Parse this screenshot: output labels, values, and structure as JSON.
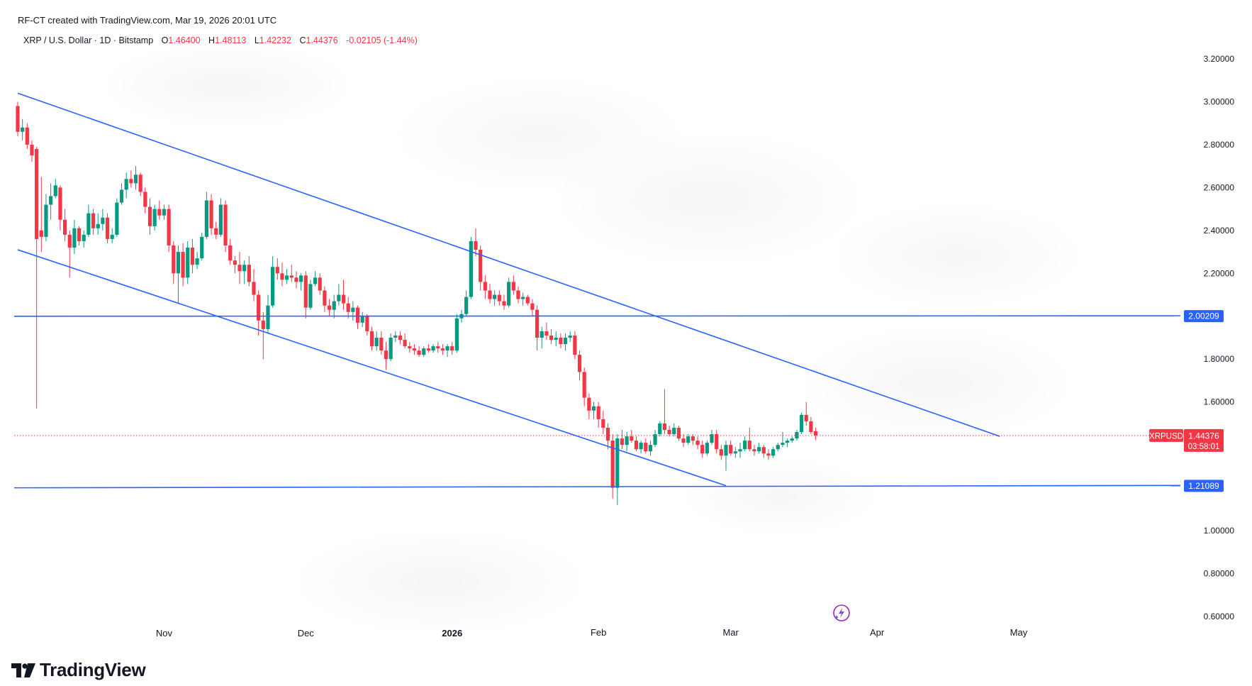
{
  "header": {
    "attribution": "RF-CT created with TradingView.com, Mar 19, 2026 20:01 UTC",
    "symbol_desc": "XRP / U.S. Dollar · 1D · Bitstamp",
    "ohlc": {
      "open_label": "O",
      "open": "1.46400",
      "high_label": "H",
      "high": "1.48113",
      "low_label": "L",
      "low": "1.42232",
      "close_label": "C",
      "close": "1.44376",
      "change": "-0.02105 (-1.44%)"
    }
  },
  "brand": {
    "name": "TradingView",
    "logo_icon": "tradingview-logo-icon"
  },
  "colors": {
    "up": "#089981",
    "down": "#f23645",
    "trendline": "#2962ff",
    "axis_text": "#131722",
    "price_tag_bg": "#f23645",
    "level_tag_bg": "#2962ff"
  },
  "chart_data": {
    "type": "candlestick",
    "title": "XRP / U.S. Dollar · 1D · Bitstamp",
    "x_tick_labels": [
      "Nov",
      "Dec",
      "2026",
      "Feb",
      "Mar",
      "Apr",
      "May"
    ],
    "y_tick_labels": [
      "3.20000",
      "3.00000",
      "2.80000",
      "2.60000",
      "2.40000",
      "2.20000",
      "1.80000",
      "1.60000",
      "1.00000",
      "0.80000",
      "0.60000"
    ],
    "ylim": [
      0.6,
      3.2
    ],
    "scale": "linear",
    "grid": false,
    "last_price": {
      "symbol": "XRPUSD",
      "value": "1.44376",
      "countdown": "03:58:01",
      "price": 1.44376
    },
    "horizontal_levels": [
      {
        "label": "2.00209",
        "value": 2.00209
      },
      {
        "label": "1.21089",
        "value": 1.21089
      }
    ],
    "trendlines": [
      {
        "name": "channel-upper",
        "points": [
          [
            "2025-10-01",
            3.04
          ],
          [
            "2026-04-27",
            1.44
          ]
        ]
      },
      {
        "name": "channel-lower",
        "points": [
          [
            "2025-10-01",
            2.31
          ],
          [
            "2026-02-28",
            1.21
          ]
        ]
      }
    ],
    "ohlc": [
      [
        "2025-10-01",
        2.98,
        3.0,
        2.84,
        2.86
      ],
      [
        "2025-10-02",
        2.86,
        2.92,
        2.82,
        2.88
      ],
      [
        "2025-10-03",
        2.88,
        2.9,
        2.78,
        2.8
      ],
      [
        "2025-10-04",
        2.8,
        2.82,
        2.72,
        2.75
      ],
      [
        "2025-10-05",
        2.78,
        2.79,
        1.57,
        2.36
      ],
      [
        "2025-10-06",
        2.4,
        2.65,
        2.3,
        2.37
      ],
      [
        "2025-10-07",
        2.37,
        2.57,
        2.35,
        2.52
      ],
      [
        "2025-10-08",
        2.52,
        2.62,
        2.45,
        2.56
      ],
      [
        "2025-10-09",
        2.56,
        2.64,
        2.55,
        2.61
      ],
      [
        "2025-10-10",
        2.6,
        2.61,
        2.4,
        2.45
      ],
      [
        "2025-10-11",
        2.45,
        2.5,
        2.35,
        2.38
      ],
      [
        "2025-10-12",
        2.38,
        2.4,
        2.18,
        2.32
      ],
      [
        "2025-10-13",
        2.32,
        2.45,
        2.29,
        2.41
      ],
      [
        "2025-10-14",
        2.41,
        2.42,
        2.33,
        2.35
      ],
      [
        "2025-10-15",
        2.35,
        2.4,
        2.32,
        2.38
      ],
      [
        "2025-10-16",
        2.38,
        2.52,
        2.37,
        2.48
      ],
      [
        "2025-10-17",
        2.48,
        2.5,
        2.38,
        2.41
      ],
      [
        "2025-10-18",
        2.41,
        2.48,
        2.38,
        2.43
      ],
      [
        "2025-10-19",
        2.43,
        2.5,
        2.4,
        2.46
      ],
      [
        "2025-10-20",
        2.46,
        2.48,
        2.34,
        2.36
      ],
      [
        "2025-10-21",
        2.36,
        2.41,
        2.34,
        2.38
      ],
      [
        "2025-10-22",
        2.38,
        2.55,
        2.37,
        2.53
      ],
      [
        "2025-10-23",
        2.53,
        2.62,
        2.52,
        2.59
      ],
      [
        "2025-10-24",
        2.59,
        2.67,
        2.55,
        2.64
      ],
      [
        "2025-10-25",
        2.64,
        2.68,
        2.6,
        2.62
      ],
      [
        "2025-10-26",
        2.62,
        2.7,
        2.59,
        2.66
      ],
      [
        "2025-10-27",
        2.66,
        2.67,
        2.56,
        2.58
      ],
      [
        "2025-10-28",
        2.58,
        2.6,
        2.48,
        2.51
      ],
      [
        "2025-10-29",
        2.51,
        2.55,
        2.38,
        2.42
      ],
      [
        "2025-10-30",
        2.42,
        2.52,
        2.4,
        2.5
      ],
      [
        "2025-10-31",
        2.5,
        2.54,
        2.45,
        2.47
      ],
      [
        "2025-11-01",
        2.47,
        2.52,
        2.45,
        2.5
      ],
      [
        "2025-11-02",
        2.5,
        2.52,
        2.3,
        2.33
      ],
      [
        "2025-11-03",
        2.33,
        2.35,
        2.15,
        2.2
      ],
      [
        "2025-11-04",
        2.2,
        2.33,
        2.06,
        2.3
      ],
      [
        "2025-11-05",
        2.3,
        2.34,
        2.14,
        2.18
      ],
      [
        "2025-11-06",
        2.18,
        2.35,
        2.15,
        2.32
      ],
      [
        "2025-11-07",
        2.32,
        2.36,
        2.2,
        2.24
      ],
      [
        "2025-11-08",
        2.24,
        2.3,
        2.22,
        2.27
      ],
      [
        "2025-11-09",
        2.27,
        2.39,
        2.26,
        2.37
      ],
      [
        "2025-11-10",
        2.37,
        2.58,
        2.36,
        2.54
      ],
      [
        "2025-11-11",
        2.54,
        2.57,
        2.38,
        2.41
      ],
      [
        "2025-11-12",
        2.41,
        2.44,
        2.36,
        2.38
      ],
      [
        "2025-11-13",
        2.38,
        2.55,
        2.37,
        2.52
      ],
      [
        "2025-11-14",
        2.52,
        2.54,
        2.3,
        2.33
      ],
      [
        "2025-11-15",
        2.33,
        2.36,
        2.24,
        2.26
      ],
      [
        "2025-11-16",
        2.26,
        2.28,
        2.2,
        2.24
      ],
      [
        "2025-11-17",
        2.24,
        2.3,
        2.15,
        2.21
      ],
      [
        "2025-11-18",
        2.21,
        2.26,
        2.15,
        2.24
      ],
      [
        "2025-11-19",
        2.24,
        2.28,
        2.14,
        2.16
      ],
      [
        "2025-11-20",
        2.16,
        2.22,
        2.07,
        2.1
      ],
      [
        "2025-11-21",
        2.1,
        2.12,
        1.91,
        1.98
      ],
      [
        "2025-11-22",
        1.98,
        2.02,
        1.8,
        1.94
      ],
      [
        "2025-11-23",
        1.94,
        2.1,
        1.92,
        2.05
      ],
      [
        "2025-11-24",
        2.05,
        2.28,
        2.04,
        2.23
      ],
      [
        "2025-11-25",
        2.23,
        2.27,
        2.17,
        2.2
      ],
      [
        "2025-11-26",
        2.2,
        2.25,
        2.14,
        2.17
      ],
      [
        "2025-11-27",
        2.17,
        2.22,
        2.15,
        2.19
      ],
      [
        "2025-11-28",
        2.19,
        2.24,
        2.16,
        2.18
      ],
      [
        "2025-11-29",
        2.18,
        2.21,
        2.13,
        2.16
      ],
      [
        "2025-11-30",
        2.16,
        2.2,
        2.12,
        2.19
      ],
      [
        "2025-12-01",
        2.19,
        2.21,
        1.99,
        2.04
      ],
      [
        "2025-12-02",
        2.04,
        2.17,
        2.03,
        2.15
      ],
      [
        "2025-12-03",
        2.15,
        2.21,
        2.14,
        2.18
      ],
      [
        "2025-12-04",
        2.18,
        2.2,
        2.1,
        2.12
      ],
      [
        "2025-12-05",
        2.12,
        2.14,
        2.02,
        2.05
      ],
      [
        "2025-12-06",
        2.05,
        2.08,
        2.0,
        2.03
      ],
      [
        "2025-12-07",
        2.03,
        2.1,
        1.99,
        2.07
      ],
      [
        "2025-12-08",
        2.07,
        2.15,
        2.05,
        2.1
      ],
      [
        "2025-12-09",
        2.1,
        2.17,
        2.03,
        2.06
      ],
      [
        "2025-12-10",
        2.06,
        2.09,
        1.99,
        2.02
      ],
      [
        "2025-12-11",
        2.02,
        2.07,
        1.98,
        2.04
      ],
      [
        "2025-12-12",
        2.04,
        2.05,
        1.94,
        1.97
      ],
      [
        "2025-12-13",
        1.97,
        2.02,
        1.95,
        2.0
      ],
      [
        "2025-12-14",
        2.0,
        2.01,
        1.91,
        1.93
      ],
      [
        "2025-12-15",
        1.93,
        1.95,
        1.84,
        1.86
      ],
      [
        "2025-12-16",
        1.86,
        1.93,
        1.84,
        1.9
      ],
      [
        "2025-12-17",
        1.9,
        1.93,
        1.82,
        1.84
      ],
      [
        "2025-12-18",
        1.84,
        1.88,
        1.75,
        1.8
      ],
      [
        "2025-12-19",
        1.8,
        1.92,
        1.79,
        1.9
      ],
      [
        "2025-12-20",
        1.9,
        1.93,
        1.88,
        1.91
      ],
      [
        "2025-12-21",
        1.91,
        1.93,
        1.87,
        1.89
      ],
      [
        "2025-12-22",
        1.89,
        1.92,
        1.85,
        1.86
      ],
      [
        "2025-12-23",
        1.86,
        1.88,
        1.83,
        1.85
      ],
      [
        "2025-12-24",
        1.85,
        1.87,
        1.82,
        1.84
      ],
      [
        "2025-12-25",
        1.84,
        1.86,
        1.81,
        1.82
      ],
      [
        "2025-12-26",
        1.82,
        1.86,
        1.81,
        1.85
      ],
      [
        "2025-12-27",
        1.85,
        1.87,
        1.83,
        1.84
      ],
      [
        "2025-12-28",
        1.84,
        1.87,
        1.83,
        1.86
      ],
      [
        "2025-12-29",
        1.86,
        1.88,
        1.83,
        1.85
      ],
      [
        "2025-12-30",
        1.85,
        1.87,
        1.82,
        1.84
      ],
      [
        "2025-12-31",
        1.84,
        1.87,
        1.81,
        1.86
      ],
      [
        "2026-01-01",
        1.86,
        1.88,
        1.82,
        1.84
      ],
      [
        "2026-01-02",
        1.84,
        2.01,
        1.83,
        1.99
      ],
      [
        "2026-01-03",
        1.99,
        2.03,
        1.97,
        2.01
      ],
      [
        "2026-01-04",
        2.01,
        2.12,
        2.0,
        2.09
      ],
      [
        "2026-01-05",
        2.09,
        2.37,
        2.08,
        2.35
      ],
      [
        "2026-01-06",
        2.35,
        2.41,
        2.28,
        2.31
      ],
      [
        "2026-01-07",
        2.31,
        2.33,
        2.12,
        2.16
      ],
      [
        "2026-01-08",
        2.16,
        2.19,
        2.08,
        2.12
      ],
      [
        "2026-01-09",
        2.12,
        2.15,
        2.06,
        2.08
      ],
      [
        "2026-01-10",
        2.08,
        2.12,
        2.05,
        2.1
      ],
      [
        "2026-01-11",
        2.1,
        2.12,
        2.05,
        2.07
      ],
      [
        "2026-01-12",
        2.07,
        2.1,
        2.03,
        2.05
      ],
      [
        "2026-01-13",
        2.05,
        2.18,
        2.04,
        2.16
      ],
      [
        "2026-01-14",
        2.16,
        2.19,
        2.1,
        2.12
      ],
      [
        "2026-01-15",
        2.12,
        2.14,
        2.06,
        2.08
      ],
      [
        "2026-01-16",
        2.08,
        2.11,
        2.05,
        2.09
      ],
      [
        "2026-01-17",
        2.09,
        2.1,
        2.05,
        2.06
      ],
      [
        "2026-01-18",
        2.06,
        2.08,
        2.0,
        2.03
      ],
      [
        "2026-01-19",
        2.03,
        2.05,
        1.84,
        1.9
      ],
      [
        "2026-01-20",
        1.9,
        1.95,
        1.85,
        1.93
      ],
      [
        "2026-01-21",
        1.93,
        1.97,
        1.89,
        1.91
      ],
      [
        "2026-01-22",
        1.91,
        1.94,
        1.87,
        1.89
      ],
      [
        "2026-01-23",
        1.89,
        1.93,
        1.86,
        1.9
      ],
      [
        "2026-01-24",
        1.9,
        1.92,
        1.85,
        1.87
      ],
      [
        "2026-01-25",
        1.87,
        1.92,
        1.84,
        1.9
      ],
      [
        "2026-01-26",
        1.9,
        1.93,
        1.88,
        1.91
      ],
      [
        "2026-01-27",
        1.91,
        1.93,
        1.8,
        1.82
      ],
      [
        "2026-01-28",
        1.82,
        1.84,
        1.7,
        1.74
      ],
      [
        "2026-01-29",
        1.74,
        1.76,
        1.58,
        1.62
      ],
      [
        "2026-01-30",
        1.62,
        1.64,
        1.52,
        1.56
      ],
      [
        "2026-01-31",
        1.56,
        1.6,
        1.52,
        1.58
      ],
      [
        "2026-02-01",
        1.58,
        1.6,
        1.48,
        1.52
      ],
      [
        "2026-02-02",
        1.52,
        1.56,
        1.45,
        1.48
      ],
      [
        "2026-02-03",
        1.48,
        1.5,
        1.38,
        1.42
      ],
      [
        "2026-02-04",
        1.42,
        1.45,
        1.15,
        1.2
      ],
      [
        "2026-02-05",
        1.2,
        1.45,
        1.12,
        1.43
      ],
      [
        "2026-02-06",
        1.43,
        1.47,
        1.38,
        1.4
      ],
      [
        "2026-02-07",
        1.4,
        1.46,
        1.37,
        1.44
      ],
      [
        "2026-02-08",
        1.44,
        1.47,
        1.41,
        1.42
      ],
      [
        "2026-02-09",
        1.42,
        1.44,
        1.37,
        1.38
      ],
      [
        "2026-02-10",
        1.38,
        1.42,
        1.36,
        1.41
      ],
      [
        "2026-02-11",
        1.41,
        1.43,
        1.36,
        1.37
      ],
      [
        "2026-02-12",
        1.37,
        1.42,
        1.35,
        1.4
      ],
      [
        "2026-02-13",
        1.4,
        1.47,
        1.39,
        1.45
      ],
      [
        "2026-02-14",
        1.45,
        1.51,
        1.44,
        1.5
      ],
      [
        "2026-02-15",
        1.5,
        1.66,
        1.45,
        1.47
      ],
      [
        "2026-02-16",
        1.47,
        1.49,
        1.44,
        1.45
      ],
      [
        "2026-02-17",
        1.45,
        1.5,
        1.44,
        1.48
      ],
      [
        "2026-02-18",
        1.48,
        1.49,
        1.42,
        1.43
      ],
      [
        "2026-02-19",
        1.43,
        1.45,
        1.39,
        1.41
      ],
      [
        "2026-02-20",
        1.41,
        1.45,
        1.4,
        1.44
      ],
      [
        "2026-02-21",
        1.44,
        1.45,
        1.4,
        1.42
      ],
      [
        "2026-02-22",
        1.42,
        1.44,
        1.38,
        1.4
      ],
      [
        "2026-02-23",
        1.4,
        1.42,
        1.34,
        1.36
      ],
      [
        "2026-02-24",
        1.36,
        1.42,
        1.35,
        1.41
      ],
      [
        "2026-02-25",
        1.41,
        1.47,
        1.4,
        1.45
      ],
      [
        "2026-02-26",
        1.45,
        1.47,
        1.36,
        1.38
      ],
      [
        "2026-02-27",
        1.38,
        1.4,
        1.33,
        1.35
      ],
      [
        "2026-02-28",
        1.35,
        1.42,
        1.28,
        1.4
      ],
      [
        "2026-03-01",
        1.4,
        1.42,
        1.35,
        1.36
      ],
      [
        "2026-03-02",
        1.36,
        1.39,
        1.34,
        1.37
      ],
      [
        "2026-03-03",
        1.37,
        1.41,
        1.34,
        1.38
      ],
      [
        "2026-03-04",
        1.38,
        1.44,
        1.37,
        1.42
      ],
      [
        "2026-03-05",
        1.42,
        1.48,
        1.37,
        1.38
      ],
      [
        "2026-03-06",
        1.38,
        1.4,
        1.35,
        1.37
      ],
      [
        "2026-03-07",
        1.37,
        1.41,
        1.36,
        1.39
      ],
      [
        "2026-03-08",
        1.39,
        1.4,
        1.34,
        1.36
      ],
      [
        "2026-03-09",
        1.36,
        1.38,
        1.33,
        1.35
      ],
      [
        "2026-03-10",
        1.35,
        1.39,
        1.34,
        1.38
      ],
      [
        "2026-03-11",
        1.38,
        1.41,
        1.37,
        1.4
      ],
      [
        "2026-03-12",
        1.4,
        1.46,
        1.39,
        1.41
      ],
      [
        "2026-03-13",
        1.41,
        1.43,
        1.39,
        1.42
      ],
      [
        "2026-03-14",
        1.42,
        1.44,
        1.41,
        1.43
      ],
      [
        "2026-03-15",
        1.43,
        1.47,
        1.42,
        1.46
      ],
      [
        "2026-03-16",
        1.46,
        1.55,
        1.45,
        1.54
      ],
      [
        "2026-03-17",
        1.54,
        1.6,
        1.49,
        1.51
      ],
      [
        "2026-03-18",
        1.51,
        1.53,
        1.45,
        1.46
      ],
      [
        "2026-03-19",
        1.464,
        1.48113,
        1.42232,
        1.44376
      ]
    ]
  }
}
